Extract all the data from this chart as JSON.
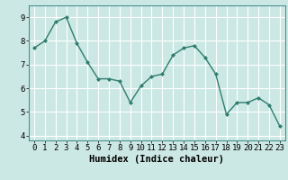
{
  "x": [
    0,
    1,
    2,
    3,
    4,
    5,
    6,
    7,
    8,
    9,
    10,
    11,
    12,
    13,
    14,
    15,
    16,
    17,
    18,
    19,
    20,
    21,
    22,
    23
  ],
  "y": [
    7.7,
    8.0,
    8.8,
    9.0,
    7.9,
    7.1,
    6.4,
    6.4,
    6.3,
    5.4,
    6.1,
    6.5,
    6.6,
    7.4,
    7.7,
    7.8,
    7.3,
    6.6,
    4.9,
    5.4,
    5.4,
    5.6,
    5.3,
    4.4
  ],
  "line_color": "#2e7d6e",
  "marker_color": "#2e7d6e",
  "bg_color": "#cce8e4",
  "grid_color": "#ffffff",
  "xlabel": "Humidex (Indice chaleur)",
  "ylim": [
    3.8,
    9.5
  ],
  "xlim": [
    -0.5,
    23.5
  ],
  "yticks": [
    4,
    5,
    6,
    7,
    8,
    9
  ],
  "xticks": [
    0,
    1,
    2,
    3,
    4,
    5,
    6,
    7,
    8,
    9,
    10,
    11,
    12,
    13,
    14,
    15,
    16,
    17,
    18,
    19,
    20,
    21,
    22,
    23
  ],
  "tick_fontsize": 6.5,
  "xlabel_fontsize": 7.5,
  "marker_size": 2.5,
  "line_width": 1.0
}
